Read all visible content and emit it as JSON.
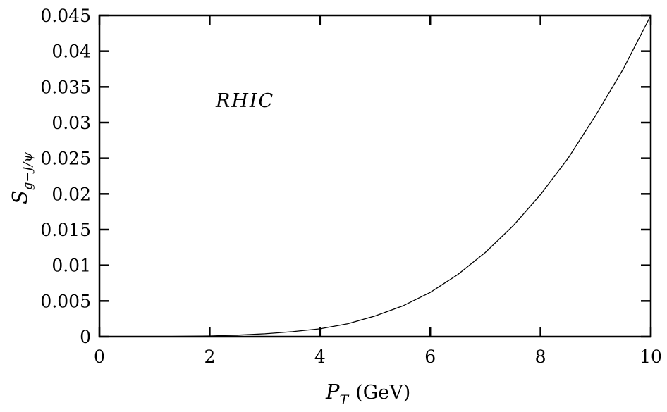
{
  "chart_data": {
    "type": "line",
    "title": "",
    "xlabel": {
      "main": "P",
      "sub": "T",
      "unit": "(GeV)"
    },
    "ylabel": {
      "main": "S",
      "sub": "g−J/ψ"
    },
    "annotation": "RHIC",
    "xlim": [
      0,
      10
    ],
    "ylim": [
      0,
      0.045
    ],
    "xticks": [
      0,
      2,
      4,
      6,
      8,
      10
    ],
    "xtick_labels": [
      "0",
      "2",
      "4",
      "6",
      "8",
      "10"
    ],
    "yticks": [
      0,
      0.005,
      0.01,
      0.015,
      0.02,
      0.025,
      0.03,
      0.035,
      0.04,
      0.045
    ],
    "ytick_labels": [
      "0",
      "0.005",
      "0.01",
      "0.015",
      "0.02",
      "0.025",
      "0.03",
      "0.035",
      "0.04",
      "0.045"
    ],
    "grid": false,
    "series": [
      {
        "x": [
          0,
          1,
          2,
          2.5,
          3,
          3.5,
          4,
          4.5,
          5,
          5.5,
          6,
          6.5,
          7,
          7.5,
          8,
          8.5,
          9,
          9.5,
          10
        ],
        "y": [
          0,
          1e-05,
          0.0001,
          0.00022,
          0.0004,
          0.0007,
          0.0011,
          0.0018,
          0.0029,
          0.0043,
          0.0062,
          0.0087,
          0.0118,
          0.0155,
          0.0199,
          0.025,
          0.031,
          0.0375,
          0.045
        ]
      }
    ]
  }
}
